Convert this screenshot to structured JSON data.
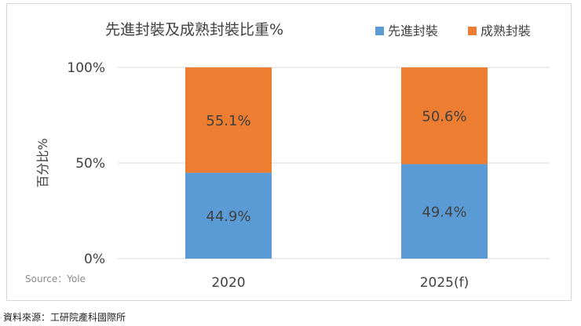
{
  "chart_data": {
    "type": "bar",
    "stacked": true,
    "title": "先進封裝及成熟封裝比重%",
    "ylabel": "百分比%",
    "xlabel": "",
    "categories": [
      "2020",
      "2025(f)"
    ],
    "ylim": [
      0,
      100
    ],
    "yticks": [
      "0%",
      "50%",
      "100%"
    ],
    "series": [
      {
        "name": "先進封裝",
        "color": "#5b9bd5",
        "values": [
          44.9,
          49.4
        ],
        "labels": [
          "44.9%",
          "49.4%"
        ]
      },
      {
        "name": "成熟封裝",
        "color": "#ed7d31",
        "values": [
          55.1,
          50.6
        ],
        "labels": [
          "55.1%",
          "50.6%"
        ]
      }
    ],
    "legend_position": "top-right",
    "source": "Source：Yole"
  },
  "footer": "資料來源：工研院產科國際所"
}
